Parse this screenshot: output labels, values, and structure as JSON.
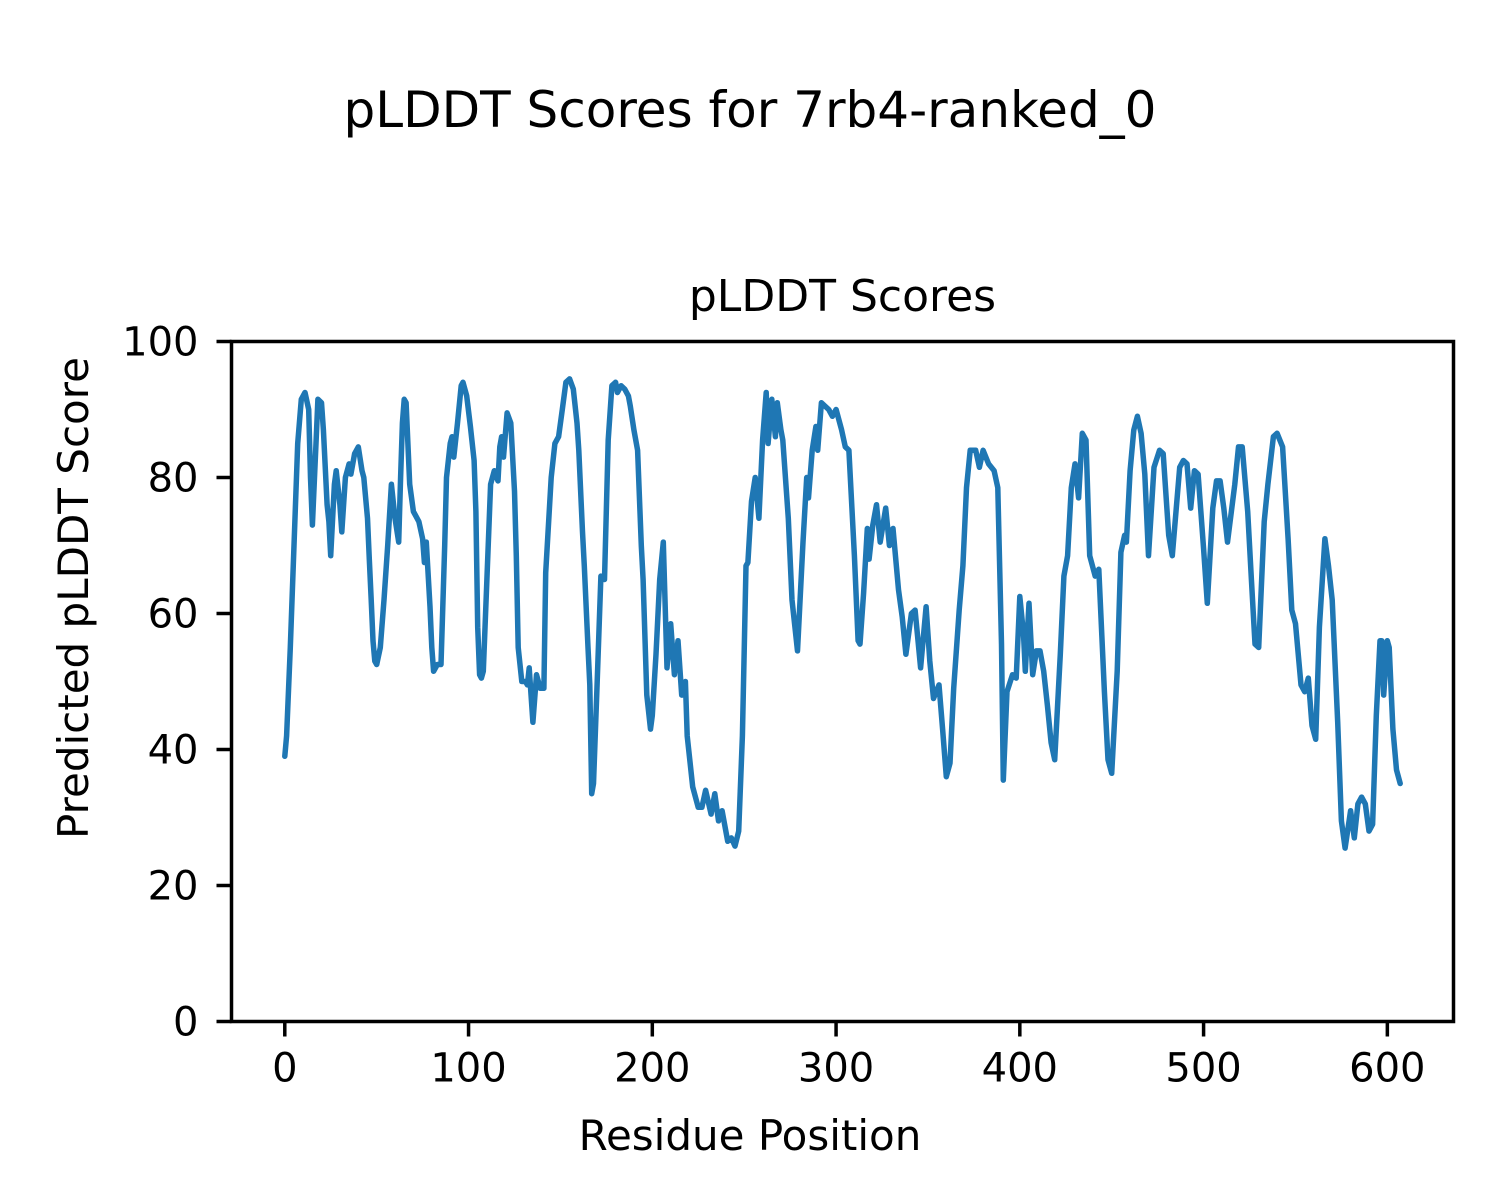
{
  "figure": {
    "suptitle": "pLDDT Scores for 7rb4-ranked_0",
    "background_color": "#ffffff",
    "text_color": "#000000"
  },
  "chart_data": {
    "type": "line",
    "title": "pLDDT Scores",
    "xlabel": "Residue Position",
    "ylabel": "Predicted pLDDT Score",
    "xlim": [
      -29,
      636
    ],
    "ylim": [
      0,
      100
    ],
    "xticks": [
      0,
      100,
      200,
      300,
      400,
      500,
      600
    ],
    "yticks": [
      0,
      20,
      40,
      60,
      80,
      100
    ],
    "grid": false,
    "legend_position": "none",
    "axes_color": "#000000",
    "series": [
      {
        "name": "pLDDT",
        "color": "#1f77b4",
        "linewidth": 5.5,
        "points": [
          [
            0,
            39
          ],
          [
            1,
            42
          ],
          [
            3,
            55
          ],
          [
            5,
            70
          ],
          [
            7,
            85
          ],
          [
            9,
            91.5
          ],
          [
            11,
            92.5
          ],
          [
            13,
            90
          ],
          [
            14,
            80
          ],
          [
            15,
            73
          ],
          [
            17,
            85
          ],
          [
            18,
            91.5
          ],
          [
            20,
            91
          ],
          [
            21,
            87
          ],
          [
            23,
            76
          ],
          [
            24,
            73.5
          ],
          [
            25,
            68.5
          ],
          [
            27,
            79
          ],
          [
            28,
            81
          ],
          [
            30,
            76
          ],
          [
            31,
            72
          ],
          [
            33,
            80
          ],
          [
            35,
            82
          ],
          [
            36,
            80.5
          ],
          [
            38,
            83.5
          ],
          [
            40,
            84.5
          ],
          [
            42,
            81
          ],
          [
            43,
            80
          ],
          [
            45,
            74
          ],
          [
            46,
            68
          ],
          [
            47,
            62
          ],
          [
            48,
            56
          ],
          [
            49,
            53
          ],
          [
            50,
            52.5
          ],
          [
            52,
            55
          ],
          [
            54,
            62
          ],
          [
            56,
            70
          ],
          [
            58,
            79
          ],
          [
            60,
            74
          ],
          [
            62,
            70.5
          ],
          [
            63,
            80
          ],
          [
            64,
            88
          ],
          [
            65,
            91.5
          ],
          [
            66,
            91
          ],
          [
            68,
            79
          ],
          [
            70,
            75
          ],
          [
            72,
            74
          ],
          [
            73,
            73.5
          ],
          [
            75,
            71
          ],
          [
            76,
            67.5
          ],
          [
            77,
            70.5
          ],
          [
            79,
            61
          ],
          [
            80,
            55
          ],
          [
            81,
            51.5
          ],
          [
            83,
            52.5
          ],
          [
            85,
            52.5
          ],
          [
            87,
            70
          ],
          [
            88,
            80
          ],
          [
            90,
            85
          ],
          [
            91,
            86
          ],
          [
            92,
            83
          ],
          [
            94,
            88
          ],
          [
            96,
            93.5
          ],
          [
            97,
            94
          ],
          [
            99,
            92
          ],
          [
            101,
            87.5
          ],
          [
            103,
            82.5
          ],
          [
            104,
            75
          ],
          [
            105,
            58
          ],
          [
            106,
            51
          ],
          [
            107,
            50.5
          ],
          [
            108,
            51.5
          ],
          [
            110,
            65
          ],
          [
            112,
            79
          ],
          [
            114,
            81
          ],
          [
            116,
            79.5
          ],
          [
            117,
            84.5
          ],
          [
            118,
            86
          ],
          [
            119,
            83
          ],
          [
            121,
            89.5
          ],
          [
            123,
            88
          ],
          [
            125,
            78
          ],
          [
            126,
            68.5
          ],
          [
            127,
            55
          ],
          [
            129,
            50
          ],
          [
            131,
            50
          ],
          [
            132,
            49.5
          ],
          [
            133,
            52
          ],
          [
            135,
            44
          ],
          [
            137,
            51
          ],
          [
            139,
            49
          ],
          [
            141,
            49
          ],
          [
            142,
            66
          ],
          [
            145,
            80
          ],
          [
            147,
            85
          ],
          [
            149,
            86
          ],
          [
            151,
            90
          ],
          [
            153,
            94
          ],
          [
            155,
            94.5
          ],
          [
            157,
            93
          ],
          [
            159,
            88
          ],
          [
            160,
            84
          ],
          [
            162,
            72
          ],
          [
            163,
            67
          ],
          [
            165,
            55
          ],
          [
            166,
            49.5
          ],
          [
            167,
            33.5
          ],
          [
            168,
            35
          ],
          [
            170,
            50
          ],
          [
            172,
            65.5
          ],
          [
            174,
            65
          ],
          [
            176,
            85.5
          ],
          [
            178,
            93.5
          ],
          [
            180,
            94
          ],
          [
            181,
            92.5
          ],
          [
            183,
            93.5
          ],
          [
            185,
            93
          ],
          [
            187,
            92
          ],
          [
            188,
            90.5
          ],
          [
            190,
            87
          ],
          [
            192,
            84
          ],
          [
            194,
            70
          ],
          [
            195,
            65
          ],
          [
            197,
            48
          ],
          [
            199,
            43
          ],
          [
            200,
            45
          ],
          [
            202,
            54
          ],
          [
            204,
            65
          ],
          [
            206,
            70.5
          ],
          [
            208,
            52
          ],
          [
            210,
            58.5
          ],
          [
            212,
            51
          ],
          [
            214,
            56
          ],
          [
            216,
            48
          ],
          [
            218,
            50
          ],
          [
            219,
            42
          ],
          [
            222,
            34.5
          ],
          [
            225,
            31.5
          ],
          [
            227,
            31.5
          ],
          [
            229,
            34
          ],
          [
            232,
            30.5
          ],
          [
            234,
            33.5
          ],
          [
            236,
            29.5
          ],
          [
            238,
            31
          ],
          [
            241,
            26.5
          ],
          [
            243,
            27
          ],
          [
            245,
            25.8
          ],
          [
            247,
            28
          ],
          [
            249,
            42
          ],
          [
            251,
            67
          ],
          [
            252,
            67.5
          ],
          [
            254,
            76.5
          ],
          [
            256,
            80
          ],
          [
            258,
            74
          ],
          [
            260,
            85.5
          ],
          [
            262,
            92.5
          ],
          [
            263,
            85
          ],
          [
            265,
            91.5
          ],
          [
            267,
            86
          ],
          [
            268,
            91
          ],
          [
            270,
            87
          ],
          [
            271,
            85.5
          ],
          [
            274,
            74
          ],
          [
            276,
            62
          ],
          [
            279,
            54.5
          ],
          [
            282,
            70.5
          ],
          [
            284,
            80
          ],
          [
            285,
            77
          ],
          [
            287,
            84
          ],
          [
            289,
            87.5
          ],
          [
            290,
            84
          ],
          [
            292,
            91
          ],
          [
            294,
            90.5
          ],
          [
            296,
            90
          ],
          [
            298,
            89
          ],
          [
            300,
            90
          ],
          [
            303,
            87
          ],
          [
            305,
            84.5
          ],
          [
            307,
            84
          ],
          [
            310,
            68.5
          ],
          [
            312,
            56
          ],
          [
            313,
            55.5
          ],
          [
            315,
            63
          ],
          [
            317,
            72.5
          ],
          [
            318,
            68
          ],
          [
            320,
            73
          ],
          [
            322,
            76
          ],
          [
            324,
            70.5
          ],
          [
            327,
            75.5
          ],
          [
            329,
            70
          ],
          [
            331,
            72.5
          ],
          [
            334,
            63.5
          ],
          [
            336,
            59.5
          ],
          [
            338,
            54
          ],
          [
            341,
            60
          ],
          [
            343,
            60.5
          ],
          [
            346,
            52
          ],
          [
            349,
            61
          ],
          [
            351,
            53
          ],
          [
            353,
            47.5
          ],
          [
            356,
            49.5
          ],
          [
            358,
            43
          ],
          [
            360,
            36
          ],
          [
            362,
            38
          ],
          [
            364,
            49
          ],
          [
            367,
            60.5
          ],
          [
            369,
            67
          ],
          [
            371,
            78.5
          ],
          [
            373,
            84
          ],
          [
            376,
            84
          ],
          [
            378,
            81.5
          ],
          [
            380,
            84
          ],
          [
            383,
            82
          ],
          [
            386,
            81
          ],
          [
            388,
            78.5
          ],
          [
            390,
            55.5
          ],
          [
            391,
            35.5
          ],
          [
            393,
            48.5
          ],
          [
            396,
            51
          ],
          [
            398,
            50.5
          ],
          [
            400,
            62.5
          ],
          [
            402,
            57
          ],
          [
            403,
            51.5
          ],
          [
            405,
            61.5
          ],
          [
            407,
            51
          ],
          [
            409,
            54.5
          ],
          [
            411,
            54.5
          ],
          [
            413,
            51.5
          ],
          [
            415,
            46.5
          ],
          [
            417,
            41
          ],
          [
            419,
            38.5
          ],
          [
            422,
            54
          ],
          [
            424,
            65.5
          ],
          [
            426,
            68.5
          ],
          [
            428,
            78.5
          ],
          [
            430,
            82
          ],
          [
            432,
            77
          ],
          [
            434,
            86.5
          ],
          [
            436,
            85.5
          ],
          [
            438,
            68.5
          ],
          [
            441,
            65.5
          ],
          [
            443,
            66.5
          ],
          [
            446,
            48.5
          ],
          [
            448,
            38.5
          ],
          [
            450,
            36.5
          ],
          [
            453,
            51.5
          ],
          [
            455,
            69
          ],
          [
            457,
            71.5
          ],
          [
            458,
            70.5
          ],
          [
            460,
            81
          ],
          [
            462,
            87
          ],
          [
            464,
            89
          ],
          [
            466,
            86.5
          ],
          [
            468,
            80.5
          ],
          [
            470,
            68.5
          ],
          [
            473,
            81.5
          ],
          [
            476,
            84
          ],
          [
            478,
            83.5
          ],
          [
            481,
            71.5
          ],
          [
            483,
            68.5
          ],
          [
            487,
            81.5
          ],
          [
            489,
            82.5
          ],
          [
            491,
            82
          ],
          [
            493,
            75.5
          ],
          [
            495,
            81
          ],
          [
            497,
            80.5
          ],
          [
            500,
            69.5
          ],
          [
            502,
            61.5
          ],
          [
            505,
            75.5
          ],
          [
            507,
            79.5
          ],
          [
            509,
            79.5
          ],
          [
            511,
            75.5
          ],
          [
            513,
            70.5
          ],
          [
            517,
            79
          ],
          [
            519,
            84.5
          ],
          [
            521,
            84.5
          ],
          [
            524,
            75
          ],
          [
            526,
            65
          ],
          [
            528,
            55.5
          ],
          [
            530,
            55
          ],
          [
            533,
            73.5
          ],
          [
            535,
            79
          ],
          [
            538,
            86
          ],
          [
            540,
            86.5
          ],
          [
            543,
            84.5
          ],
          [
            546,
            71
          ],
          [
            548,
            60.5
          ],
          [
            550,
            58.5
          ],
          [
            553,
            49.5
          ],
          [
            555,
            48.5
          ],
          [
            557,
            50.5
          ],
          [
            559,
            43.5
          ],
          [
            561,
            41.5
          ],
          [
            563,
            58
          ],
          [
            566,
            71
          ],
          [
            568,
            67
          ],
          [
            570,
            62
          ],
          [
            573,
            44
          ],
          [
            575,
            29.5
          ],
          [
            577,
            25.5
          ],
          [
            580,
            31
          ],
          [
            582,
            27
          ],
          [
            584,
            32
          ],
          [
            586,
            33
          ],
          [
            588,
            32
          ],
          [
            590,
            28
          ],
          [
            592,
            29
          ],
          [
            594,
            45
          ],
          [
            596,
            56
          ],
          [
            597,
            56
          ],
          [
            598,
            48
          ],
          [
            600,
            56
          ],
          [
            601,
            55
          ],
          [
            603,
            43
          ],
          [
            605,
            37
          ],
          [
            607,
            35
          ]
        ]
      }
    ]
  }
}
